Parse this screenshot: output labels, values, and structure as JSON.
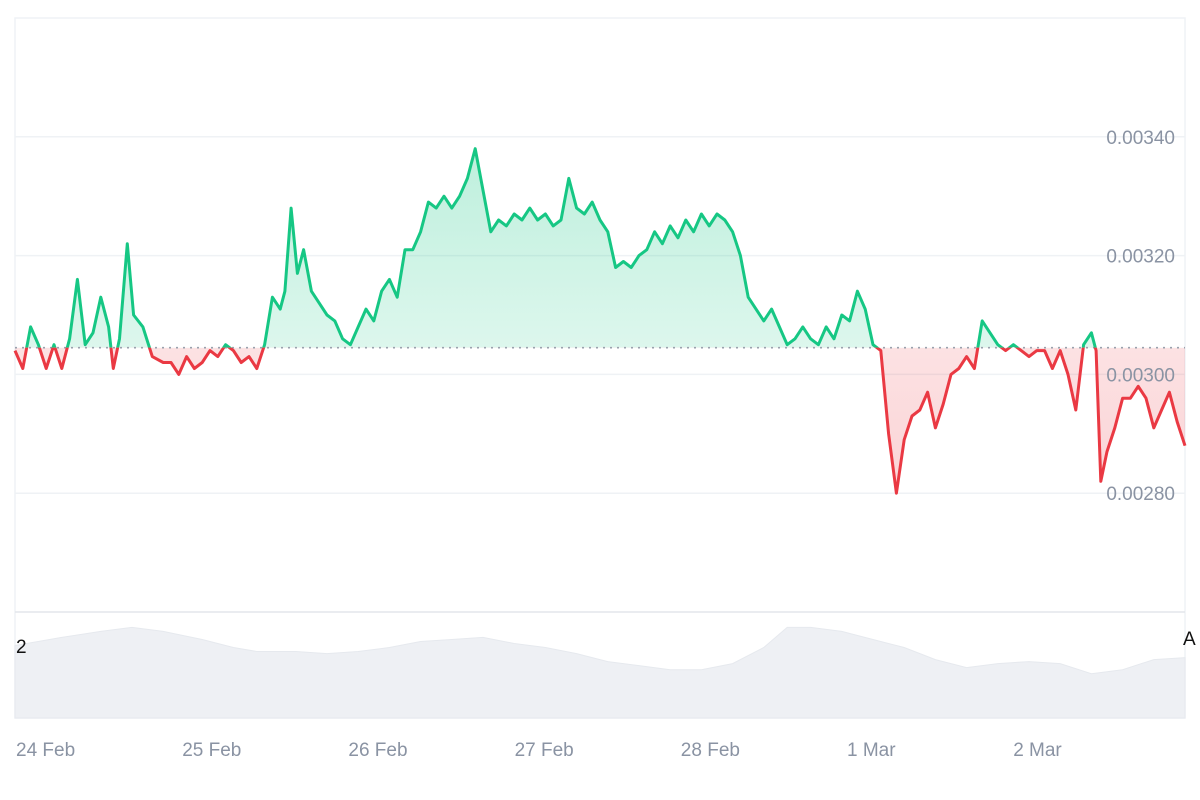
{
  "chart_data": {
    "type": "area",
    "baseline": 0.003045,
    "ylim": [
      0.0026,
      0.0036
    ],
    "y_ticks": [
      "0.00340",
      "0.00320",
      "0.00300",
      "0.00280"
    ],
    "y_tick_values": [
      0.0034,
      0.0032,
      0.003,
      0.0028
    ],
    "x_ticks": [
      "24 Feb",
      "25 Feb",
      "26 Feb",
      "27 Feb",
      "28 Feb",
      "1 Mar",
      "2 Mar"
    ],
    "x_tick_values": [
      0.12,
      1.12,
      2.12,
      3.12,
      4.12,
      5.12,
      6.12
    ],
    "x_range": [
      0,
      7.15
    ],
    "price_points": [
      [
        0.0,
        0.00304
      ],
      [
        0.05,
        0.00301
      ],
      [
        0.1,
        0.00308
      ],
      [
        0.15,
        0.00305
      ],
      [
        0.2,
        0.00301
      ],
      [
        0.25,
        0.00305
      ],
      [
        0.3,
        0.00301
      ],
      [
        0.35,
        0.00306
      ],
      [
        0.4,
        0.00316
      ],
      [
        0.45,
        0.00305
      ],
      [
        0.5,
        0.00307
      ],
      [
        0.55,
        0.00313
      ],
      [
        0.6,
        0.00308
      ],
      [
        0.63,
        0.00301
      ],
      [
        0.67,
        0.00306
      ],
      [
        0.72,
        0.00322
      ],
      [
        0.76,
        0.0031
      ],
      [
        0.82,
        0.00308
      ],
      [
        0.88,
        0.00303
      ],
      [
        0.95,
        0.00302
      ],
      [
        1.0,
        0.00302
      ],
      [
        1.05,
        0.003
      ],
      [
        1.1,
        0.00303
      ],
      [
        1.15,
        0.00301
      ],
      [
        1.2,
        0.00302
      ],
      [
        1.25,
        0.00304
      ],
      [
        1.3,
        0.00303
      ],
      [
        1.35,
        0.00305
      ],
      [
        1.4,
        0.00304
      ],
      [
        1.45,
        0.00302
      ],
      [
        1.5,
        0.00303
      ],
      [
        1.55,
        0.00301
      ],
      [
        1.6,
        0.00305
      ],
      [
        1.65,
        0.00313
      ],
      [
        1.7,
        0.00311
      ],
      [
        1.73,
        0.00314
      ],
      [
        1.77,
        0.00328
      ],
      [
        1.81,
        0.00317
      ],
      [
        1.85,
        0.00321
      ],
      [
        1.9,
        0.00314
      ],
      [
        1.95,
        0.00312
      ],
      [
        2.0,
        0.0031
      ],
      [
        2.05,
        0.00309
      ],
      [
        2.1,
        0.00306
      ],
      [
        2.15,
        0.00305
      ],
      [
        2.2,
        0.00308
      ],
      [
        2.25,
        0.00311
      ],
      [
        2.3,
        0.00309
      ],
      [
        2.35,
        0.00314
      ],
      [
        2.4,
        0.00316
      ],
      [
        2.45,
        0.00313
      ],
      [
        2.5,
        0.00321
      ],
      [
        2.55,
        0.00321
      ],
      [
        2.6,
        0.00324
      ],
      [
        2.65,
        0.00329
      ],
      [
        2.7,
        0.00328
      ],
      [
        2.75,
        0.0033
      ],
      [
        2.8,
        0.00328
      ],
      [
        2.85,
        0.0033
      ],
      [
        2.9,
        0.00333
      ],
      [
        2.95,
        0.00338
      ],
      [
        3.0,
        0.00331
      ],
      [
        3.05,
        0.00324
      ],
      [
        3.1,
        0.00326
      ],
      [
        3.15,
        0.00325
      ],
      [
        3.2,
        0.00327
      ],
      [
        3.25,
        0.00326
      ],
      [
        3.3,
        0.00328
      ],
      [
        3.35,
        0.00326
      ],
      [
        3.4,
        0.00327
      ],
      [
        3.45,
        0.00325
      ],
      [
        3.5,
        0.00326
      ],
      [
        3.55,
        0.00333
      ],
      [
        3.6,
        0.00328
      ],
      [
        3.65,
        0.00327
      ],
      [
        3.7,
        0.00329
      ],
      [
        3.75,
        0.00326
      ],
      [
        3.8,
        0.00324
      ],
      [
        3.85,
        0.00318
      ],
      [
        3.9,
        0.00319
      ],
      [
        3.95,
        0.00318
      ],
      [
        4.0,
        0.0032
      ],
      [
        4.05,
        0.00321
      ],
      [
        4.1,
        0.00324
      ],
      [
        4.15,
        0.00322
      ],
      [
        4.2,
        0.00325
      ],
      [
        4.25,
        0.00323
      ],
      [
        4.3,
        0.00326
      ],
      [
        4.35,
        0.00324
      ],
      [
        4.4,
        0.00327
      ],
      [
        4.45,
        0.00325
      ],
      [
        4.5,
        0.00327
      ],
      [
        4.55,
        0.00326
      ],
      [
        4.6,
        0.00324
      ],
      [
        4.65,
        0.0032
      ],
      [
        4.7,
        0.00313
      ],
      [
        4.75,
        0.00311
      ],
      [
        4.8,
        0.00309
      ],
      [
        4.85,
        0.00311
      ],
      [
        4.9,
        0.00308
      ],
      [
        4.95,
        0.00305
      ],
      [
        5.0,
        0.00306
      ],
      [
        5.05,
        0.00308
      ],
      [
        5.1,
        0.00306
      ],
      [
        5.15,
        0.00305
      ],
      [
        5.2,
        0.00308
      ],
      [
        5.25,
        0.00306
      ],
      [
        5.3,
        0.0031
      ],
      [
        5.35,
        0.00309
      ],
      [
        5.4,
        0.00314
      ],
      [
        5.45,
        0.00311
      ],
      [
        5.5,
        0.00305
      ],
      [
        5.55,
        0.00304
      ],
      [
        5.6,
        0.0029
      ],
      [
        5.65,
        0.0028
      ],
      [
        5.7,
        0.00289
      ],
      [
        5.75,
        0.00293
      ],
      [
        5.8,
        0.00294
      ],
      [
        5.85,
        0.00297
      ],
      [
        5.9,
        0.00291
      ],
      [
        5.95,
        0.00295
      ],
      [
        6.0,
        0.003
      ],
      [
        6.05,
        0.00301
      ],
      [
        6.1,
        0.00303
      ],
      [
        6.15,
        0.00301
      ],
      [
        6.2,
        0.00309
      ],
      [
        6.25,
        0.00307
      ],
      [
        6.3,
        0.00305
      ],
      [
        6.35,
        0.00304
      ],
      [
        6.4,
        0.00305
      ],
      [
        6.45,
        0.00304
      ],
      [
        6.5,
        0.00303
      ],
      [
        6.55,
        0.00304
      ],
      [
        6.6,
        0.00304
      ],
      [
        6.65,
        0.00301
      ],
      [
        6.7,
        0.00304
      ],
      [
        6.75,
        0.003
      ],
      [
        6.8,
        0.00294
      ],
      [
        6.85,
        0.00305
      ],
      [
        6.9,
        0.00307
      ],
      [
        6.93,
        0.00304
      ],
      [
        6.96,
        0.00282
      ],
      [
        7.0,
        0.00287
      ],
      [
        7.05,
        0.00291
      ],
      [
        7.1,
        0.00296
      ],
      [
        7.15,
        0.00296
      ],
      [
        7.2,
        0.00298
      ],
      [
        7.25,
        0.00296
      ],
      [
        7.3,
        0.00291
      ],
      [
        7.35,
        0.00294
      ],
      [
        7.4,
        0.00297
      ],
      [
        7.45,
        0.00292
      ],
      [
        7.5,
        0.00288
      ]
    ],
    "volume_points": [
      [
        0.0,
        0.72
      ],
      [
        0.3,
        0.8
      ],
      [
        0.55,
        0.86
      ],
      [
        0.75,
        0.9
      ],
      [
        0.95,
        0.86
      ],
      [
        1.2,
        0.78
      ],
      [
        1.4,
        0.7
      ],
      [
        1.55,
        0.66
      ],
      [
        1.8,
        0.66
      ],
      [
        2.0,
        0.64
      ],
      [
        2.2,
        0.66
      ],
      [
        2.4,
        0.7
      ],
      [
        2.6,
        0.76
      ],
      [
        2.8,
        0.78
      ],
      [
        3.0,
        0.8
      ],
      [
        3.2,
        0.74
      ],
      [
        3.4,
        0.7
      ],
      [
        3.6,
        0.64
      ],
      [
        3.8,
        0.56
      ],
      [
        4.0,
        0.52
      ],
      [
        4.2,
        0.48
      ],
      [
        4.4,
        0.48
      ],
      [
        4.6,
        0.54
      ],
      [
        4.8,
        0.7
      ],
      [
        4.95,
        0.9
      ],
      [
        5.1,
        0.9
      ],
      [
        5.3,
        0.86
      ],
      [
        5.5,
        0.78
      ],
      [
        5.7,
        0.7
      ],
      [
        5.9,
        0.58
      ],
      [
        6.1,
        0.5
      ],
      [
        6.3,
        0.54
      ],
      [
        6.5,
        0.56
      ],
      [
        6.7,
        0.54
      ],
      [
        6.9,
        0.44
      ],
      [
        7.1,
        0.48
      ],
      [
        7.3,
        0.58
      ],
      [
        7.5,
        0.6
      ]
    ],
    "colors": {
      "up": "#16c784",
      "down": "#ea3943",
      "grid": "#eff2f5",
      "baseline": "#9aa1ad",
      "volume": "#eef0f4",
      "volume_line": "#e6e9ee"
    }
  },
  "volume_panel": {
    "left_label": "2",
    "right_label": "A"
  }
}
